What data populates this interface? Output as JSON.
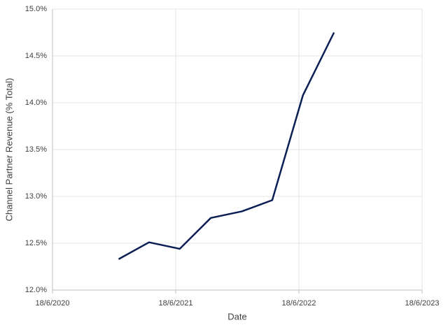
{
  "chart_data": {
    "type": "line",
    "x_label": "Date",
    "y_label": "Channel Partner Revenue (% Total)",
    "x": [
      "2020-12-31",
      "2021-03-31",
      "2021-06-30",
      "2021-09-30",
      "2021-12-31",
      "2022-03-31",
      "2022-06-30",
      "2022-09-30"
    ],
    "series": [
      {
        "name": "Channel Partner Revenue",
        "color": "#0c1f55",
        "values": [
          12.33,
          12.51,
          12.44,
          12.77,
          12.84,
          12.96,
          14.08,
          14.75
        ]
      }
    ],
    "xlim": [
      "2020-06-18",
      "2023-06-18"
    ],
    "xticks": [
      {
        "value": "2020-06-18",
        "label": "18/6/2020"
      },
      {
        "value": "2021-06-18",
        "label": "18/6/2021"
      },
      {
        "value": "2022-06-18",
        "label": "18/6/2022"
      },
      {
        "value": "2023-06-18",
        "label": "18/6/2023"
      }
    ],
    "ylim": [
      12,
      15
    ],
    "yticks": [
      {
        "value": 12,
        "label": "12.0%"
      },
      {
        "value": 12.5,
        "label": "12.5%"
      },
      {
        "value": 13,
        "label": "13.0%"
      },
      {
        "value": 13.5,
        "label": "13.5%"
      },
      {
        "value": 14,
        "label": "14.0%"
      },
      {
        "value": 14.5,
        "label": "14.5%"
      },
      {
        "value": 15,
        "label": "15.0%"
      }
    ],
    "grid": true
  }
}
